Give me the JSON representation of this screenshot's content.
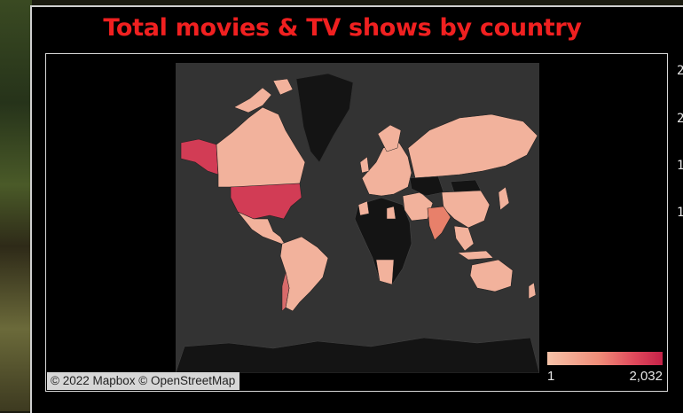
{
  "dashboard": {
    "title": "Total movies & TV shows by country"
  },
  "map": {
    "attribution": "© 2022 Mapbox © OpenStreetMap",
    "legend": {
      "min_label": "1",
      "max_label": "2,032",
      "color_low": "#f6c2a8",
      "color_high": "#c52248"
    },
    "colors": {
      "ocean": "#333333",
      "no_data_land": "#141414",
      "low": "#f2b29c",
      "mid": "#e8806a",
      "high": "#d23c55",
      "frame": "#d8d8d8",
      "title": "#f02020"
    },
    "highlighted": [
      {
        "region": "United States",
        "level": "high"
      },
      {
        "region": "India",
        "level": "mid"
      },
      {
        "region": "Canada",
        "level": "low"
      },
      {
        "region": "Brazil",
        "level": "low"
      },
      {
        "region": "Russia",
        "level": "low"
      },
      {
        "region": "Australia",
        "level": "low"
      }
    ]
  },
  "side_panel": {
    "labels": [
      "2",
      "2",
      "1",
      "1"
    ]
  }
}
